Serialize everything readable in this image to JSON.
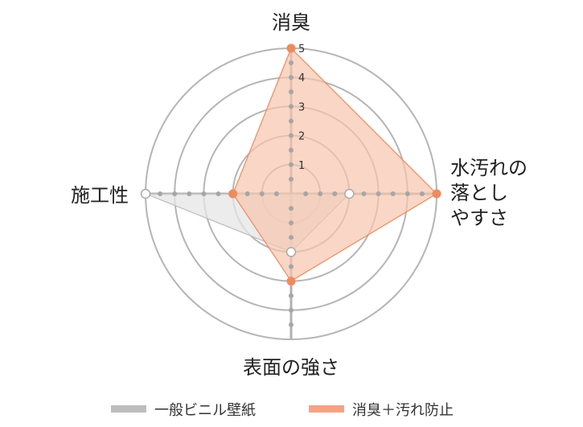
{
  "chart_data": {
    "type": "radar",
    "title": "",
    "axes": [
      "消臭",
      "水汚れの落としやすさ",
      "表面の強さ",
      "施工性"
    ],
    "axis_label_lines": [
      [
        "消臭"
      ],
      [
        "水汚れの",
        "落とし",
        "やすさ"
      ],
      [
        "表面の強さ"
      ],
      [
        "施工性"
      ]
    ],
    "ticks": [
      "1",
      "2",
      "3",
      "4",
      "5"
    ],
    "range": [
      0,
      5
    ],
    "series": [
      {
        "name": "一般ビニル壁紙",
        "values": [
          0,
          2,
          2,
          5
        ],
        "color": "#bdbdbd",
        "fill": "#e6e6e6"
      },
      {
        "name": "消臭＋汚れ防止",
        "values": [
          5,
          5,
          3,
          2
        ],
        "color": "#f08a5d",
        "fill": "#f7c4ac"
      }
    ],
    "grid": true,
    "legend": "bottom"
  }
}
